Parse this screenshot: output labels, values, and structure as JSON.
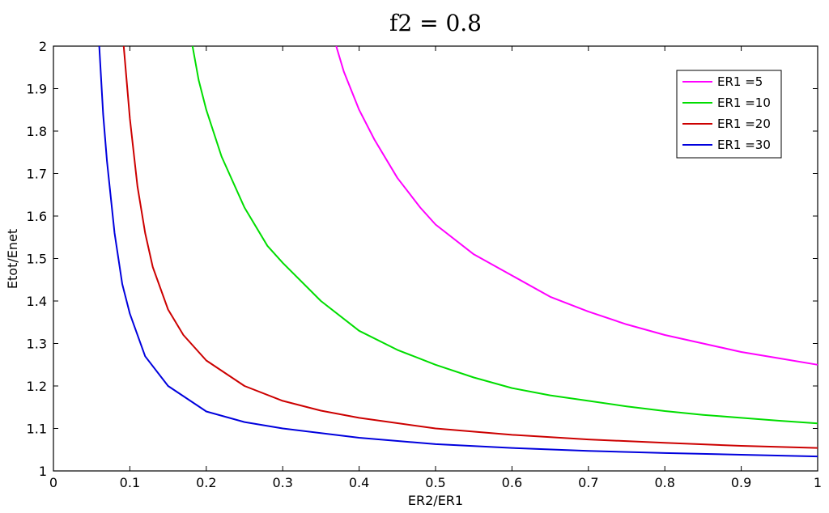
{
  "chart_data": {
    "type": "line",
    "title": "f2 = 0.8",
    "xlabel": "ER2/ER1",
    "ylabel": "Etot/Enet",
    "xlim": [
      0,
      1
    ],
    "ylim": [
      1,
      2
    ],
    "xticks": [
      0,
      0.1,
      0.2,
      0.3,
      0.4,
      0.5,
      0.6,
      0.7,
      0.8,
      0.9,
      1
    ],
    "xtick_labels": [
      "0",
      "0.1",
      "0.2",
      "0.3",
      "0.4",
      "0.5",
      "0.6",
      "0.7",
      "0.8",
      "0.9",
      "1"
    ],
    "yticks": [
      1,
      1.1,
      1.2,
      1.3,
      1.4,
      1.5,
      1.6,
      1.7,
      1.8,
      1.9,
      2
    ],
    "ytick_labels": [
      "1",
      "1.1",
      "1.2",
      "1.3",
      "1.4",
      "1.5",
      "1.6",
      "1.7",
      "1.8",
      "1.9",
      "2"
    ],
    "grid": false,
    "legend_position": "top-right",
    "series": [
      {
        "name": "ER1 =5",
        "color": "#ff00ff",
        "x": [
          0.37,
          0.38,
          0.4,
          0.42,
          0.45,
          0.48,
          0.5,
          0.55,
          0.6,
          0.65,
          0.7,
          0.75,
          0.8,
          0.85,
          0.9,
          0.95,
          1.0
        ],
        "y": [
          2.0,
          1.94,
          1.85,
          1.78,
          1.69,
          1.62,
          1.58,
          1.51,
          1.46,
          1.41,
          1.375,
          1.345,
          1.32,
          1.3,
          1.28,
          1.265,
          1.25
        ]
      },
      {
        "name": "ER1 =10",
        "color": "#00dd00",
        "x": [
          0.182,
          0.19,
          0.2,
          0.22,
          0.25,
          0.28,
          0.3,
          0.35,
          0.4,
          0.45,
          0.5,
          0.55,
          0.6,
          0.65,
          0.7,
          0.75,
          0.8,
          0.85,
          0.9,
          0.95,
          1.0
        ],
        "y": [
          2.0,
          1.92,
          1.85,
          1.74,
          1.62,
          1.53,
          1.49,
          1.4,
          1.33,
          1.285,
          1.25,
          1.22,
          1.195,
          1.178,
          1.165,
          1.152,
          1.141,
          1.132,
          1.125,
          1.118,
          1.112
        ]
      },
      {
        "name": "ER1 =20",
        "color": "#cc0000",
        "x": [
          0.092,
          0.1,
          0.11,
          0.12,
          0.13,
          0.15,
          0.17,
          0.2,
          0.25,
          0.3,
          0.35,
          0.4,
          0.5,
          0.6,
          0.7,
          0.8,
          0.9,
          1.0
        ],
        "y": [
          2.0,
          1.83,
          1.67,
          1.56,
          1.48,
          1.38,
          1.32,
          1.26,
          1.2,
          1.165,
          1.142,
          1.125,
          1.1,
          1.085,
          1.074,
          1.066,
          1.059,
          1.054
        ]
      },
      {
        "name": "ER1 =30",
        "color": "#0000dd",
        "x": [
          0.06,
          0.065,
          0.07,
          0.08,
          0.09,
          0.1,
          0.12,
          0.15,
          0.2,
          0.25,
          0.3,
          0.4,
          0.5,
          0.6,
          0.7,
          0.8,
          0.9,
          1.0
        ],
        "y": [
          2.0,
          1.84,
          1.73,
          1.56,
          1.44,
          1.37,
          1.27,
          1.2,
          1.14,
          1.115,
          1.1,
          1.078,
          1.063,
          1.054,
          1.047,
          1.042,
          1.038,
          1.034
        ]
      }
    ]
  }
}
